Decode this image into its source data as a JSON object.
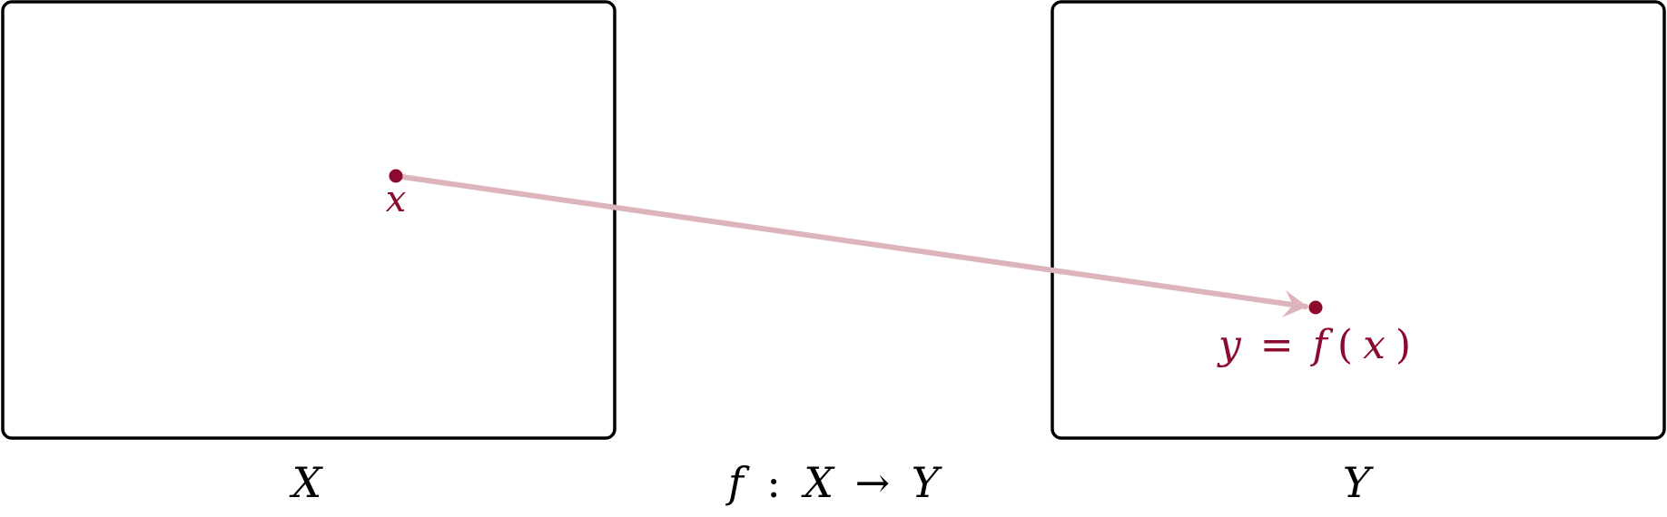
{
  "colors": {
    "frame": "#000000",
    "point": "#8b0a2e",
    "arrow": "#ddb4bb",
    "label": "#000000"
  },
  "domain_set": {
    "name": "X",
    "point_label": "x"
  },
  "codomain_set": {
    "name": "Y",
    "point_label_lhs": "y",
    "point_label_eq": "=",
    "point_label_fn": "f",
    "point_label_open": "(",
    "point_label_arg": "x",
    "point_label_close": ")"
  },
  "mapping": {
    "fn": "f",
    "colon": ":",
    "from": "X",
    "arrow": "→",
    "to": "Y"
  }
}
